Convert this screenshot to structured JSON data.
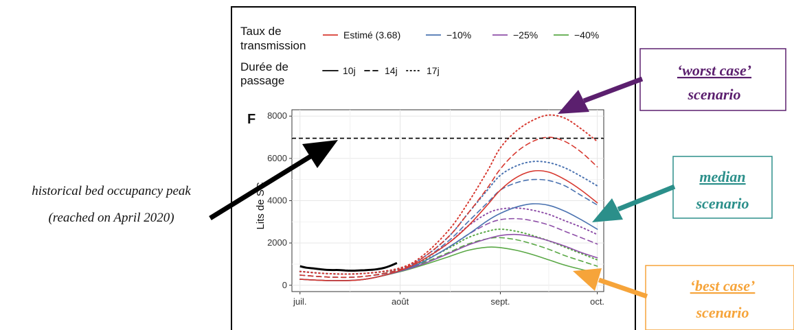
{
  "legend": {
    "transmission_title_1": "Taux de",
    "transmission_title_2": "transmission",
    "duration_title_1": "Durée de",
    "duration_title_2": "passage",
    "transmission_entries": [
      {
        "label": "Estimé (3.68)",
        "color": "#d7382f"
      },
      {
        "label": "−10%",
        "color": "#4a72b0"
      },
      {
        "label": "−25%",
        "color": "#8e4fa8"
      },
      {
        "label": "−40%",
        "color": "#5aa846"
      }
    ],
    "duration_entries": [
      {
        "label": "10j",
        "style": "solid"
      },
      {
        "label": "14j",
        "style": "dashed"
      },
      {
        "label": "17j",
        "style": "dotted"
      }
    ]
  },
  "panel_label": "F",
  "annotations": {
    "historical_line1": "historical bed occupancy peak",
    "historical_line2": "(reached on April 2020)",
    "worst_title": "‘worst case’",
    "worst_sub": "scenario",
    "worst_color": "#5b1f6e",
    "median_title": "median",
    "median_sub": "scenario",
    "median_color": "#2b8f8a",
    "best_title": "‘best case’",
    "best_sub": "scenario",
    "best_color": "#f6a43a"
  },
  "chart_data": {
    "type": "line",
    "ylabel": "Lits de SC",
    "x_ticks": [
      {
        "label": "juil.",
        "day": 0
      },
      {
        "label": "août",
        "day": 31
      },
      {
        "label": "sept.",
        "day": 62
      },
      {
        "label": "oct.",
        "day": 92
      }
    ],
    "y_ticks": [
      0,
      2000,
      4000,
      6000,
      8000
    ],
    "xlim": [
      -2.5,
      94
    ],
    "ylim": [
      -300,
      8300
    ],
    "grid": true,
    "reference_line": {
      "value": 6950,
      "style": "dashed",
      "color": "#000000"
    },
    "observed": {
      "color": "#000000",
      "x": [
        0,
        2,
        4,
        6,
        8,
        10,
        12,
        14,
        16,
        18,
        20,
        22,
        24,
        26,
        28,
        30
      ],
      "y": [
        900,
        830,
        800,
        760,
        730,
        720,
        720,
        700,
        690,
        700,
        710,
        730,
        760,
        820,
        920,
        1050
      ]
    },
    "series": [
      {
        "transmission": "Estimé (3.68)",
        "duration": "10j",
        "x": [
          0,
          10,
          20,
          31,
          38,
          46,
          52,
          58,
          62,
          67,
          72,
          77,
          82,
          87,
          92
        ],
        "y": [
          280,
          220,
          280,
          700,
          1200,
          2000,
          2800,
          3800,
          4500,
          5100,
          5400,
          5350,
          5000,
          4500,
          3900
        ]
      },
      {
        "transmission": "Estimé (3.68)",
        "duration": "14j",
        "x": [
          0,
          10,
          20,
          31,
          38,
          46,
          52,
          58,
          62,
          67,
          72,
          77,
          82,
          87,
          92
        ],
        "y": [
          480,
          380,
          420,
          750,
          1300,
          2300,
          3400,
          4600,
          5500,
          6300,
          6800,
          7000,
          6800,
          6300,
          5600
        ]
      },
      {
        "transmission": "Estimé (3.68)",
        "duration": "17j",
        "x": [
          0,
          10,
          20,
          31,
          38,
          46,
          52,
          58,
          62,
          67,
          72,
          77,
          82,
          87,
          92
        ],
        "y": [
          650,
          540,
          560,
          820,
          1400,
          2600,
          3900,
          5400,
          6500,
          7300,
          7800,
          8050,
          7900,
          7400,
          6800
        ]
      },
      {
        "transmission": "−10%",
        "duration": "10j",
        "x": [
          0,
          10,
          20,
          31,
          38,
          46,
          52,
          58,
          62,
          67,
          72,
          77,
          82,
          87,
          92
        ],
        "y": [
          280,
          220,
          280,
          680,
          1100,
          1800,
          2400,
          3050,
          3400,
          3700,
          3850,
          3780,
          3500,
          3100,
          2650
        ]
      },
      {
        "transmission": "−10%",
        "duration": "14j",
        "x": [
          0,
          10,
          20,
          31,
          38,
          46,
          52,
          58,
          62,
          67,
          72,
          77,
          82,
          87,
          92
        ],
        "y": [
          480,
          380,
          420,
          730,
          1200,
          2100,
          3000,
          3900,
          4500,
          4850,
          5000,
          4950,
          4700,
          4250,
          3800
        ]
      },
      {
        "transmission": "−10%",
        "duration": "17j",
        "x": [
          0,
          10,
          20,
          31,
          38,
          46,
          52,
          58,
          62,
          67,
          72,
          77,
          82,
          87,
          92
        ],
        "y": [
          650,
          540,
          560,
          800,
          1300,
          2300,
          3400,
          4500,
          5200,
          5650,
          5850,
          5800,
          5550,
          5150,
          4700
        ]
      },
      {
        "transmission": "−25%",
        "duration": "10j",
        "x": [
          0,
          10,
          20,
          31,
          38,
          46,
          52,
          58,
          62,
          67,
          72,
          77,
          82,
          87,
          92
        ],
        "y": [
          280,
          220,
          280,
          660,
          1000,
          1500,
          1900,
          2200,
          2350,
          2400,
          2300,
          2100,
          1850,
          1550,
          1300
        ]
      },
      {
        "transmission": "−25%",
        "duration": "14j",
        "x": [
          0,
          10,
          20,
          31,
          38,
          46,
          52,
          58,
          62,
          67,
          72,
          77,
          82,
          87,
          92
        ],
        "y": [
          480,
          380,
          420,
          700,
          1100,
          1800,
          2400,
          2900,
          3100,
          3150,
          3050,
          2850,
          2550,
          2250,
          1950
        ]
      },
      {
        "transmission": "−25%",
        "duration": "17j",
        "x": [
          0,
          10,
          20,
          31,
          38,
          46,
          52,
          58,
          62,
          67,
          72,
          77,
          82,
          87,
          92
        ],
        "y": [
          650,
          540,
          560,
          780,
          1200,
          2000,
          2800,
          3400,
          3600,
          3650,
          3550,
          3350,
          3050,
          2750,
          2400
        ]
      },
      {
        "transmission": "−40%",
        "duration": "10j",
        "x": [
          0,
          10,
          20,
          31,
          38,
          46,
          52,
          58,
          62,
          67,
          72,
          77,
          82,
          87,
          92
        ],
        "y": [
          280,
          220,
          280,
          640,
          950,
          1350,
          1650,
          1800,
          1780,
          1650,
          1450,
          1200,
          950,
          750,
          580
        ]
      },
      {
        "transmission": "−40%",
        "duration": "14j",
        "x": [
          0,
          10,
          20,
          31,
          38,
          46,
          52,
          58,
          62,
          67,
          72,
          77,
          82,
          87,
          92
        ],
        "y": [
          480,
          380,
          420,
          680,
          1050,
          1550,
          1950,
          2200,
          2250,
          2150,
          1950,
          1700,
          1400,
          1150,
          900
        ]
      },
      {
        "transmission": "−40%",
        "duration": "17j",
        "x": [
          0,
          10,
          20,
          31,
          38,
          46,
          52,
          58,
          62,
          67,
          72,
          77,
          82,
          87,
          92
        ],
        "y": [
          650,
          540,
          560,
          750,
          1150,
          1750,
          2250,
          2550,
          2650,
          2550,
          2350,
          2100,
          1800,
          1500,
          1200
        ]
      }
    ]
  }
}
